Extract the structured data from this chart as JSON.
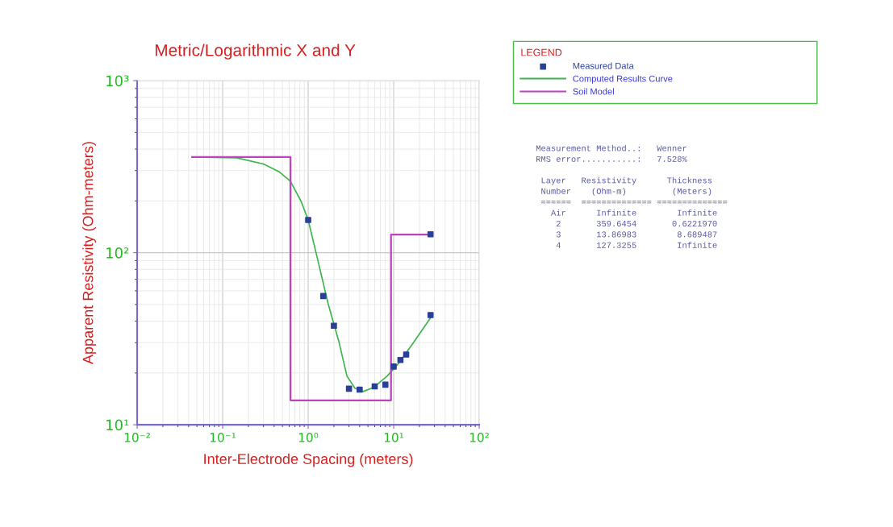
{
  "chart_data": {
    "type": "line",
    "title": "Metric/Logarithmic X and Y",
    "xlabel": "Inter-Electrode Spacing (meters)",
    "ylabel": "Apparent Resistivity (Ohm-meters)",
    "legend_title": "LEGEND",
    "log": "xy",
    "grid": true,
    "legend": "right",
    "xlim": [
      0.01,
      100
    ],
    "ylim": [
      10,
      1000
    ],
    "xticks": [
      {
        "value": 0.01,
        "label": "10⁻²"
      },
      {
        "value": 0.1,
        "label": "10⁻¹"
      },
      {
        "value": 1,
        "label": "10⁰"
      },
      {
        "value": 10,
        "label": "10¹"
      },
      {
        "value": 100,
        "label": "10²"
      }
    ],
    "yticks": [
      {
        "value": 10,
        "label": "10¹"
      },
      {
        "value": 100,
        "label": "10²"
      },
      {
        "value": 1000,
        "label": "10³"
      }
    ],
    "series": [
      {
        "name": "Measured Data",
        "type": "scatter",
        "marker": "square",
        "color": "#2a3f9a",
        "x": [
          1.0,
          1.5,
          2.0,
          3.0,
          4.0,
          6.0,
          8.0,
          10,
          12,
          14,
          27,
          27
        ],
        "values": [
          155,
          56,
          37.6,
          16.2,
          16.0,
          16.7,
          17.1,
          21.8,
          23.8,
          25.6,
          43.4,
          128
        ]
      },
      {
        "name": "Computed Results Curve",
        "color": "#3cb44b",
        "x": [
          0.044,
          0.146,
          0.3,
          0.46,
          0.62,
          0.83,
          1.0,
          1.28,
          1.71,
          2.28,
          2.84,
          3.52,
          4.38,
          5.85,
          8.4,
          11.2,
          16.2,
          27.4
        ],
        "values": [
          359.6,
          356,
          328,
          295,
          260,
          198,
          155,
          93,
          50.6,
          30.6,
          19.2,
          16.3,
          15.6,
          16.5,
          19.2,
          22.5,
          29,
          42.3
        ]
      },
      {
        "name": "Soil Model",
        "type": "step",
        "color": "#c040c0",
        "x": [
          0.044,
          0.622,
          9.31,
          27.2
        ],
        "values": [
          359.6,
          13.87,
          127.3,
          127.3
        ]
      }
    ],
    "annotations": [
      "Measurement Method..:   Wenner",
      "RMS error...........:   7.528%",
      " Layer   Resistivity      Thickness",
      " Number    (Ohm-m)         (Meters)",
      " ======  ============== ==============",
      "   Air      Infinite        Infinite",
      "    2       359.6454       0.6221970",
      "    3       13.86983        8.689487",
      "    4       127.3255        Infinite"
    ]
  }
}
